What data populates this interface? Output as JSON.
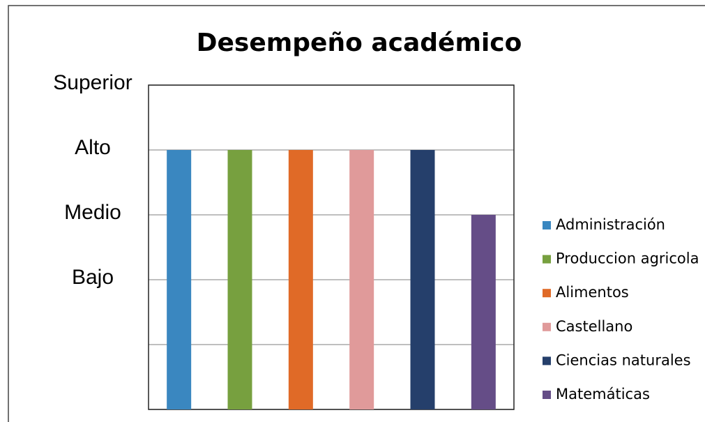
{
  "chart_data": {
    "type": "bar",
    "title": "Desempeño académico",
    "categories": [
      null
    ],
    "series": [
      {
        "name": "Administración",
        "color": "#3a87c0",
        "values": [
          4
        ]
      },
      {
        "name": "Produccion agricola",
        "color": "#77a03f",
        "values": [
          4
        ]
      },
      {
        "name": "Alimentos",
        "color": "#e06a27",
        "values": [
          4
        ]
      },
      {
        "name": "Castellano",
        "color": "#e09a9a",
        "values": [
          4
        ]
      },
      {
        "name": "Ciencias naturales",
        "color": "#253f6b",
        "values": [
          4
        ]
      },
      {
        "name": "Matemáticas",
        "color": "#654d87",
        "values": [
          3
        ]
      }
    ],
    "ylim": [
      0,
      5
    ],
    "yticks": [
      {
        "value": 0,
        "label": null
      },
      {
        "value": 1,
        "label": null
      },
      {
        "value": 2,
        "label": "Bajo"
      },
      {
        "value": 3,
        "label": "Medio"
      },
      {
        "value": 4,
        "label": "Alto"
      },
      {
        "value": 5,
        "label": "Superior"
      }
    ],
    "grid": true,
    "legend": "right"
  }
}
